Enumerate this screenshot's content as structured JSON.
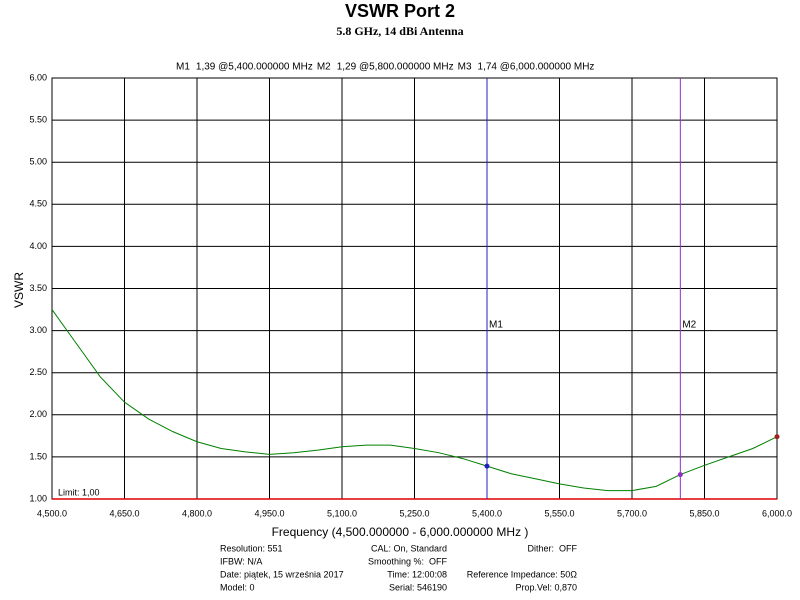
{
  "chart_data": {
    "type": "line",
    "title": "VSWR Port 2",
    "subtitle": "5.8 GHz, 14 dBi Antenna",
    "x_label": "Frequency (4,500.000000 - 6,000.000000 MHz )",
    "y_label": "VSWR",
    "x": [
      4500,
      4550,
      4600,
      4650,
      4700,
      4750,
      4800,
      4850,
      4900,
      4950,
      5000,
      5050,
      5100,
      5150,
      5200,
      5250,
      5300,
      5350,
      5400,
      5450,
      5500,
      5550,
      5600,
      5650,
      5700,
      5750,
      5800,
      5850,
      5900,
      5950,
      6000
    ],
    "values": [
      3.25,
      2.85,
      2.45,
      2.15,
      1.95,
      1.8,
      1.68,
      1.6,
      1.56,
      1.53,
      1.55,
      1.58,
      1.62,
      1.64,
      1.64,
      1.6,
      1.55,
      1.48,
      1.39,
      1.3,
      1.24,
      1.18,
      1.13,
      1.1,
      1.1,
      1.15,
      1.29,
      1.4,
      1.5,
      1.6,
      1.74
    ],
    "color": "#008000",
    "xlim": [
      4500,
      6000
    ],
    "xticks": [
      {
        "value": 4500,
        "label": "4,500.0"
      },
      {
        "value": 4650,
        "label": "4,650.0"
      },
      {
        "value": 4800,
        "label": "4,800.0"
      },
      {
        "value": 4950,
        "label": "4,950.0"
      },
      {
        "value": 5100,
        "label": "5,100.0"
      },
      {
        "value": 5250,
        "label": "5,250.0"
      },
      {
        "value": 5400,
        "label": "5,400.0"
      },
      {
        "value": 5550,
        "label": "5,550.0"
      },
      {
        "value": 5700,
        "label": "5,700.0"
      },
      {
        "value": 5850,
        "label": "5,850.0"
      },
      {
        "value": 6000,
        "label": "6,000.0"
      }
    ],
    "ylim": [
      1,
      6
    ],
    "yticks": [
      {
        "value": 1,
        "label": "1.00"
      },
      {
        "value": 1.5,
        "label": "1.50"
      },
      {
        "value": 2,
        "label": "2.00"
      },
      {
        "value": 2.5,
        "label": "2.50"
      },
      {
        "value": 3,
        "label": "3.00"
      },
      {
        "value": 3.5,
        "label": "3.50"
      },
      {
        "value": 4,
        "label": "4.00"
      },
      {
        "value": 4.5,
        "label": "4.50"
      },
      {
        "value": 5,
        "label": "5.00"
      },
      {
        "value": 5.5,
        "label": "5.50"
      },
      {
        "value": 6,
        "label": "6.00"
      }
    ],
    "grid": true,
    "limit": {
      "label": "Limit: 1,00",
      "value": 1,
      "color": "#e00000"
    },
    "markers": [
      {
        "name": "M1",
        "label": "1,39 @5,400.000000 MHz",
        "x": 5400,
        "value": 1.39,
        "color": "#2020c0",
        "show_line": true
      },
      {
        "name": "M2",
        "label": "1,29 @5,800.000000 MHz",
        "x": 5800,
        "value": 1.29,
        "color": "#9030c0",
        "show_line": true
      },
      {
        "name": "M3",
        "label": "1,74 @6,000.000000 MHz",
        "x": 6000,
        "value": 1.74,
        "color": "#a02020",
        "show_line": false
      }
    ]
  },
  "footer": {
    "left": [
      "Resolution: 551",
      "IFBW: N/A",
      "Date: piątek, 15 września 2017",
      "Model: 0"
    ],
    "middle": [
      "CAL: On, Standard",
      "Smoothing %:  OFF",
      "Time: 12:00:08",
      "Serial: 546190"
    ],
    "right": [
      "Dither:  OFF",
      "Reference Impedance: 50Ω",
      "Prop.Vel: 0,870"
    ]
  }
}
